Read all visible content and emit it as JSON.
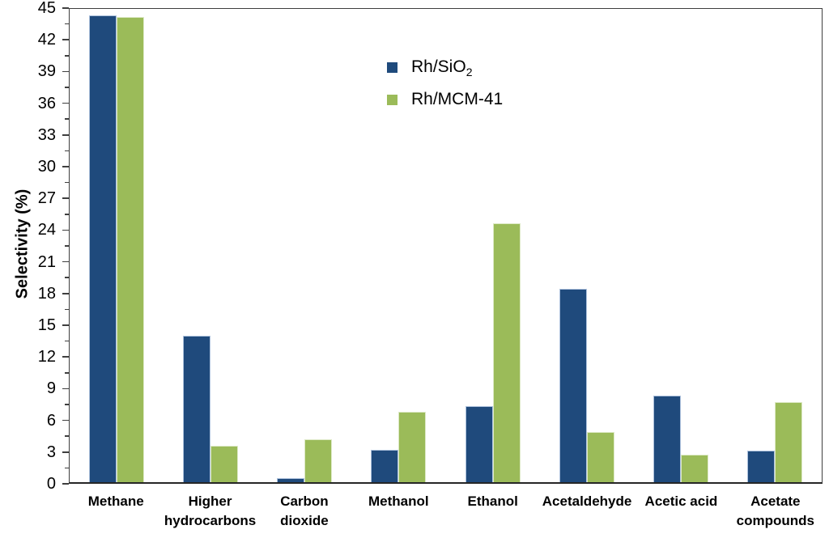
{
  "chart_data": {
    "type": "bar",
    "title": "",
    "xlabel": "",
    "ylabel": "Selectivity (%)",
    "ylim": [
      0,
      45
    ],
    "y_major_step": 3,
    "y_minor_step": 1.5,
    "grid": false,
    "legend_position": "top-center-inside",
    "categories": [
      "Methane",
      "Higher\nhydrocarbons",
      "Carbon\ndioxide",
      "Methanol",
      "Ethanol",
      "Acetaldehyde",
      "Acetic acid",
      "Acetate\ncompounds"
    ],
    "series": [
      {
        "name": "Rh/SiO2",
        "color": "#1f4a7c",
        "border_color": "#aec2dd",
        "values": [
          44.4,
          13.9,
          0.4,
          3.1,
          7.2,
          18.4,
          8.2,
          3.0
        ]
      },
      {
        "name": "Rh/MCM-41",
        "color": "#9bbb59",
        "border_color": "#dde9c6",
        "values": [
          44.2,
          3.5,
          4.1,
          6.7,
          24.6,
          4.8,
          2.6,
          7.6
        ]
      }
    ]
  },
  "legend": {
    "items": [
      {
        "label_main": "Rh/SiO",
        "label_sub": "2",
        "color": "#1f4a7c"
      },
      {
        "label_main": "Rh/MCM-41",
        "label_sub": "",
        "color": "#9bbb59"
      }
    ]
  },
  "axis": {
    "tick_color": "#3f3f3f",
    "major_tick_len": 8,
    "minor_tick_len": 5
  }
}
